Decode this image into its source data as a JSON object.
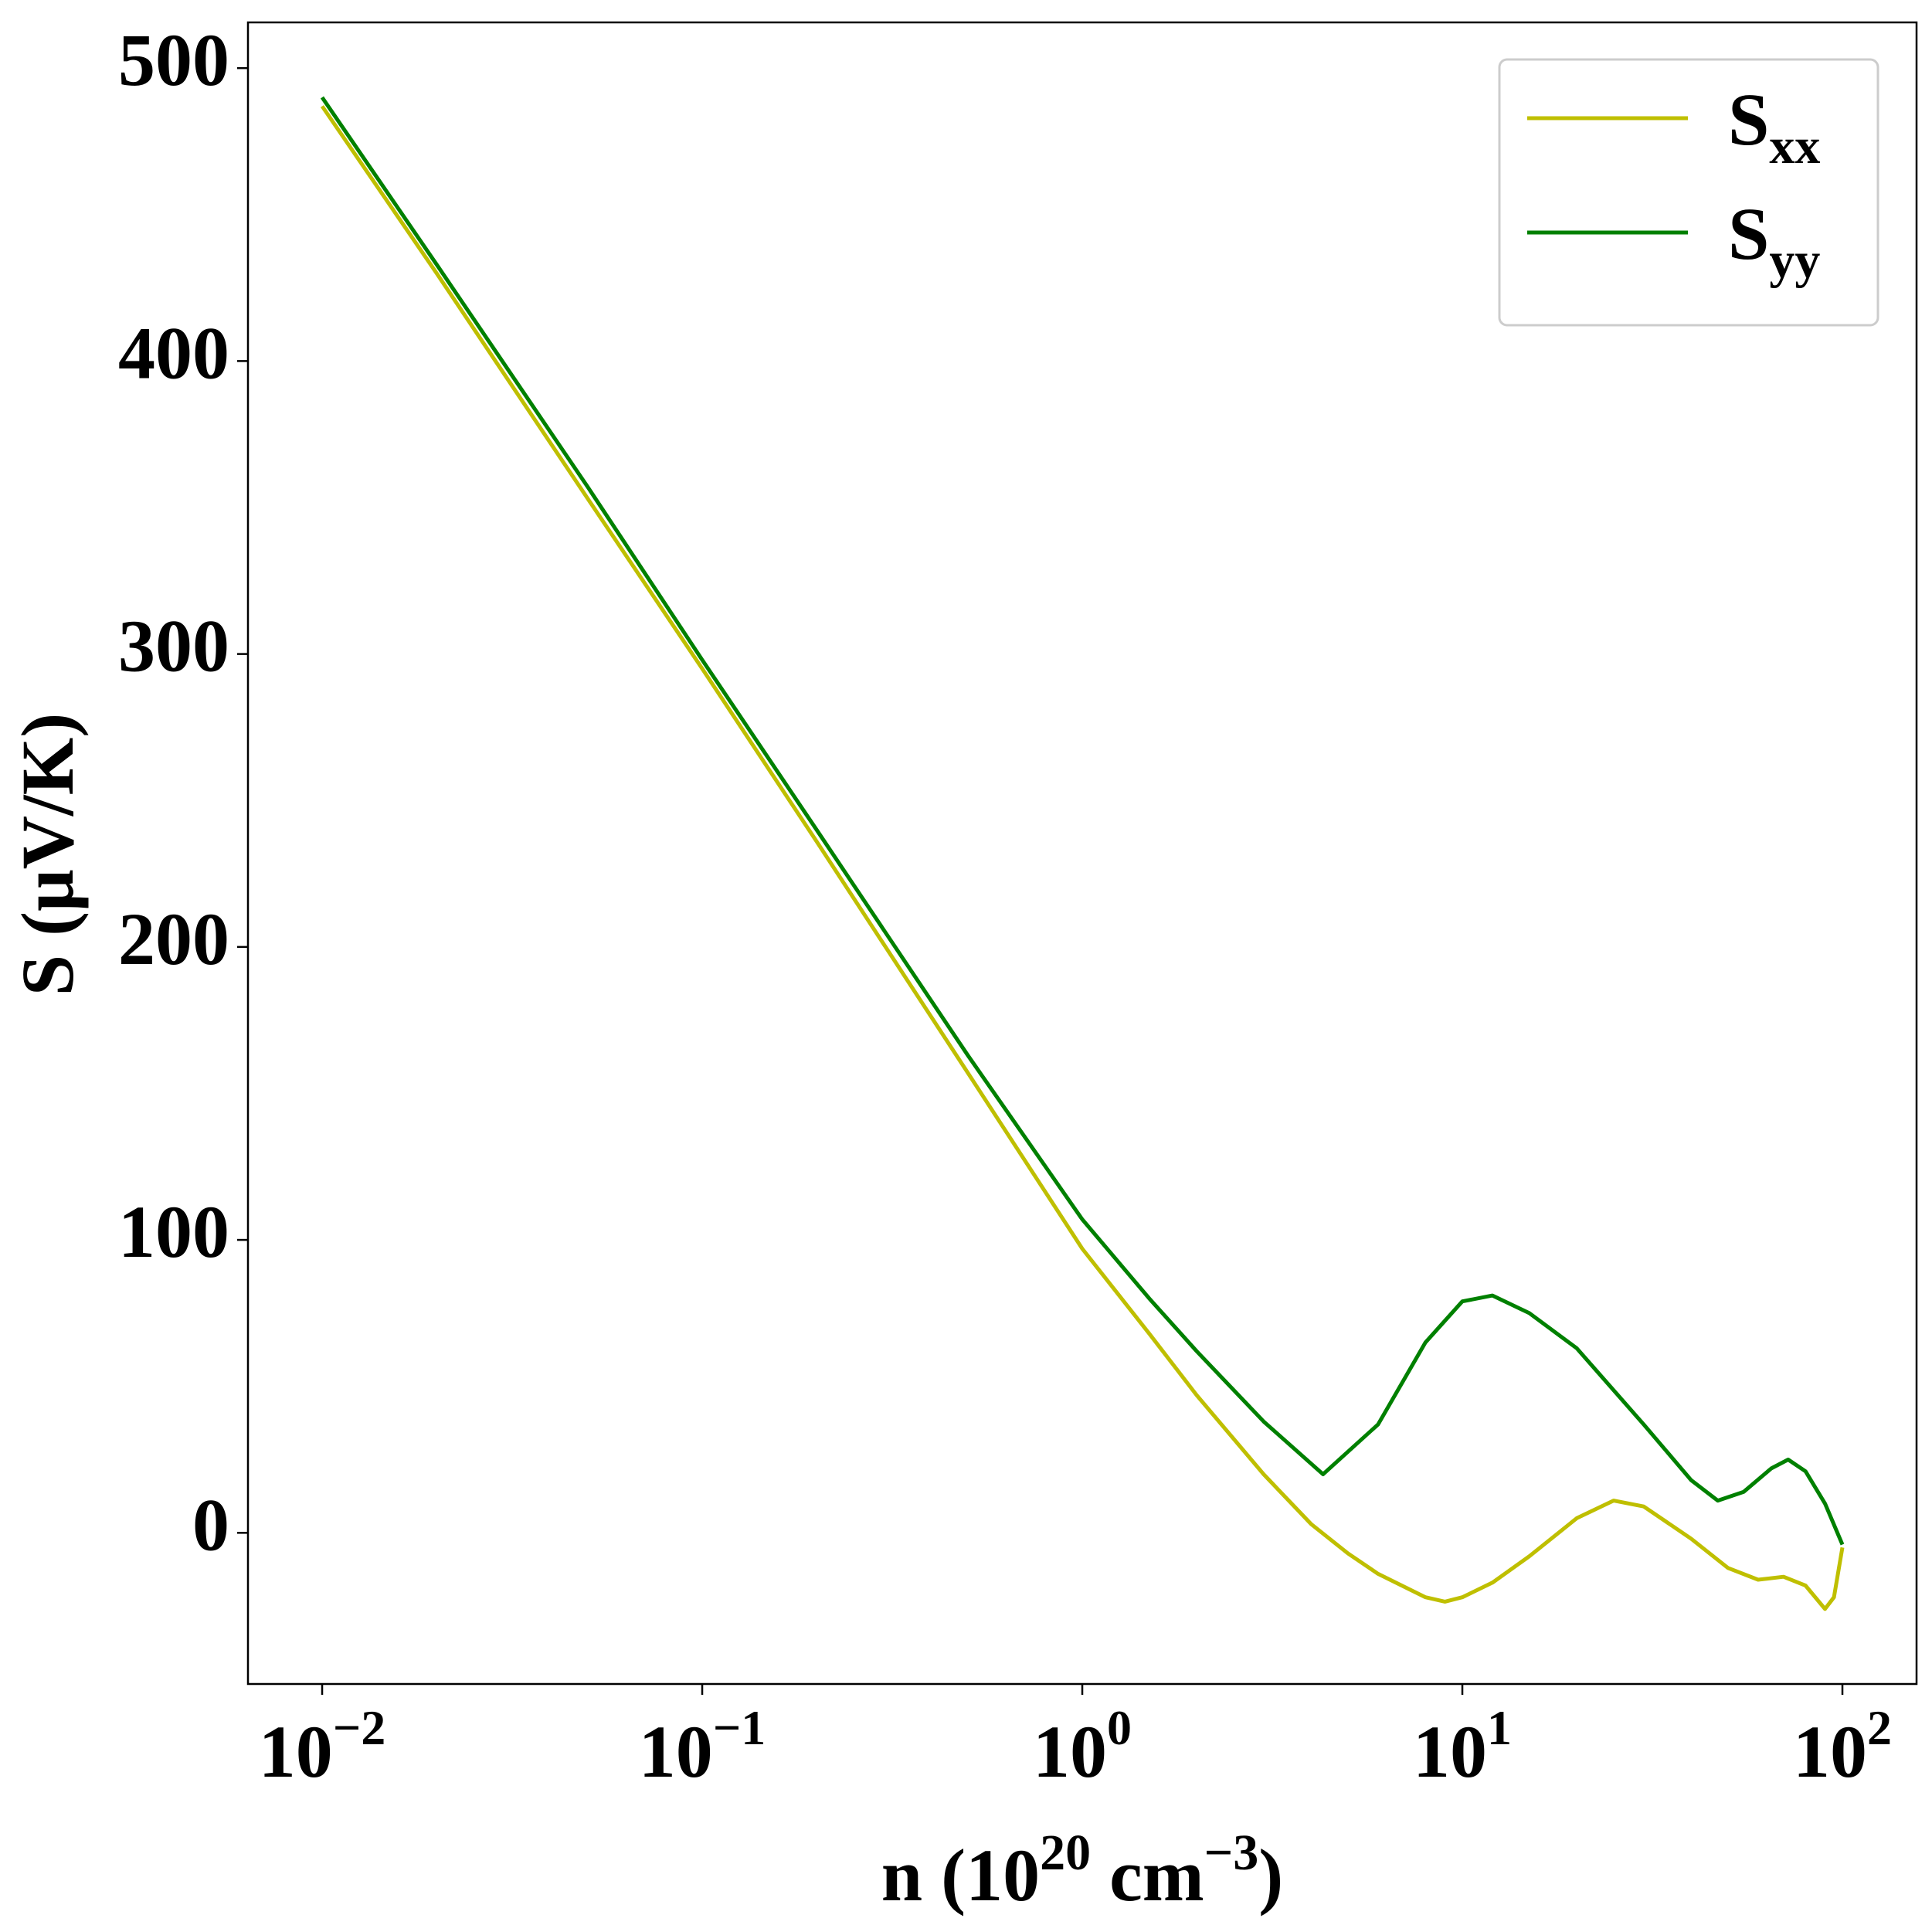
{
  "chart_data": {
    "type": "line",
    "x_label": {
      "text": "n (10",
      "sup1": "20",
      "mid": " cm",
      "sup2": "−3",
      "end": ")"
    },
    "y_label": "S (μV/K)",
    "xscale": "log",
    "xlim": [
      0.00638,
      156.7
    ],
    "ylim": [
      -51.6,
      515.6
    ],
    "xticks": [
      {
        "value": 0.01,
        "label": "10",
        "exponent": "−2"
      },
      {
        "value": 0.1,
        "label": "10",
        "exponent": "−1"
      },
      {
        "value": 1,
        "label": "10",
        "exponent": "0"
      },
      {
        "value": 10,
        "label": "10",
        "exponent": "1"
      },
      {
        "value": 100,
        "label": "10",
        "exponent": "2"
      }
    ],
    "yticks": [
      0,
      100,
      200,
      300,
      400,
      500
    ],
    "legend": "upper right",
    "series": [
      {
        "name": "S",
        "name_sub": "xx",
        "color": "#bfbf00",
        "x": [
          0.01,
          0.02,
          0.05,
          0.1,
          0.2,
          0.5,
          1,
          1.5,
          2,
          3,
          4,
          5,
          6,
          8,
          9,
          10,
          12,
          15,
          20,
          25,
          30,
          40,
          50,
          60,
          70,
          80,
          90,
          95,
          100
        ],
        "values": [
          487,
          430,
          353,
          295,
          236,
          157,
          97,
          68,
          47,
          20,
          3,
          -7,
          -14,
          -22,
          -23.5,
          -22,
          -17,
          -8,
          5,
          11,
          9,
          -2,
          -12,
          -16,
          -15,
          -18,
          -26,
          -22,
          -5
        ]
      },
      {
        "name": "S",
        "name_sub": "yy",
        "color": "#008000",
        "x": [
          0.01,
          0.02,
          0.05,
          0.1,
          0.2,
          0.5,
          1,
          1.5,
          2,
          3,
          4.3,
          6,
          8,
          10,
          12,
          15,
          20,
          30,
          40,
          47,
          55,
          65,
          72,
          80,
          90,
          100
        ],
        "values": [
          490,
          433,
          357,
          298,
          240,
          163,
          107,
          80,
          62,
          38,
          20,
          37,
          65,
          79,
          81,
          75,
          63,
          37,
          18,
          11,
          14,
          22,
          25,
          21,
          10,
          -4
        ]
      }
    ]
  }
}
